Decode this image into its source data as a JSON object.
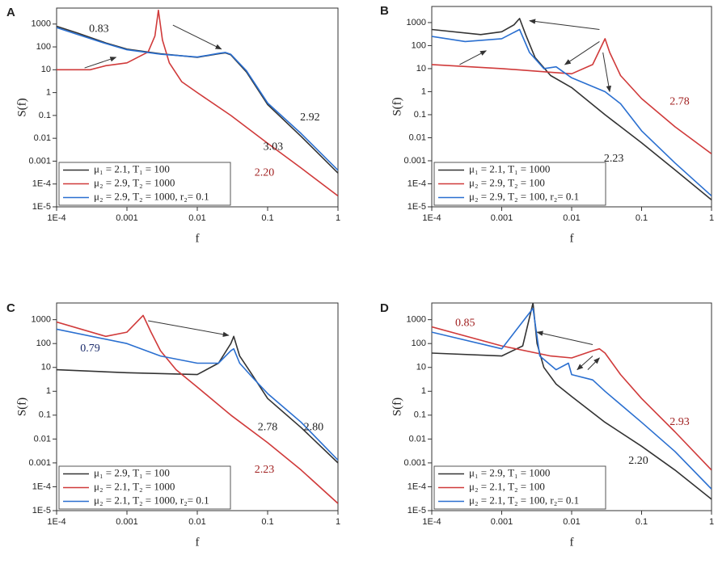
{
  "chart_data": [
    {
      "type": "line",
      "label": "A",
      "xlabel": "f",
      "ylabel": "S(f)",
      "log_x": true,
      "log_y": true,
      "legend": "lower left",
      "xlim": [
        0.0001,
        1
      ],
      "xticks": [
        {
          "value": 0.0001,
          "label": "1E-4"
        },
        0.001,
        0.01,
        0.1,
        1
      ],
      "ylim": [
        1e-05,
        5000
      ],
      "yticks": [
        {
          "value": 1e-05,
          "label": "1E-5"
        },
        {
          "value": 0.0001,
          "label": "1E-4"
        },
        0.001,
        0.01,
        0.1,
        1,
        10,
        100,
        1000
      ],
      "series": [
        {
          "name": "μ₁ = 2.1, T₁ = 100",
          "color": "#333333",
          "x": [
            0.0001,
            0.0002,
            0.0005,
            0.001,
            0.003,
            0.01,
            0.02,
            0.025,
            0.03,
            0.05,
            0.1,
            0.3,
            1
          ],
          "values": [
            800,
            400,
            150,
            80,
            50,
            35,
            50,
            55,
            45,
            8,
            0.3,
            0.012,
            0.0003
          ]
        },
        {
          "name": "μ₂ = 2.9, T₂ = 1000",
          "color": "#d03a3a",
          "x": [
            0.0001,
            0.0003,
            0.0005,
            0.001,
            0.002,
            0.0025,
            0.0028,
            0.0032,
            0.004,
            0.006,
            0.01,
            0.03,
            0.1,
            0.3,
            1
          ],
          "values": [
            10,
            10,
            15,
            20,
            60,
            300,
            4000,
            200,
            20,
            3,
            1,
            0.1,
            0.006,
            0.0005,
            3e-05
          ]
        },
        {
          "name": "μ₂ = 2.9, T₂ = 1000, r₂= 0.1",
          "color": "#2a6fd0",
          "x": [
            0.0001,
            0.0002,
            0.0005,
            0.001,
            0.003,
            0.01,
            0.02,
            0.025,
            0.03,
            0.05,
            0.1,
            0.3,
            1
          ],
          "values": [
            700,
            350,
            140,
            75,
            48,
            36,
            52,
            57,
            47,
            9,
            0.35,
            0.016,
            0.0004
          ]
        }
      ],
      "annotations": [
        {
          "text": "0.83",
          "x": 0.0004,
          "y": 600,
          "color": "#222222"
        },
        {
          "text": "2.92",
          "x": 0.4,
          "y": 0.08,
          "color": "#222222"
        },
        {
          "text": "3.03",
          "x": 0.12,
          "y": 0.004,
          "color": "#222222"
        },
        {
          "text": "2.20",
          "x": 0.09,
          "y": 0.0003,
          "color": "#a02020"
        }
      ],
      "arrows": [
        {
          "from": [
            0.00025,
            12
          ],
          "to": [
            0.0007,
            35
          ]
        },
        {
          "from": [
            0.0045,
            900
          ],
          "to": [
            0.022,
            80
          ]
        }
      ]
    },
    {
      "type": "line",
      "label": "B",
      "xlabel": "f",
      "ylabel": "S(f)",
      "log_x": true,
      "log_y": true,
      "legend": "lower left",
      "xlim": [
        0.0001,
        1
      ],
      "xticks": [
        {
          "value": 0.0001,
          "label": "1E-4"
        },
        0.001,
        0.01,
        0.1,
        1
      ],
      "ylim": [
        1e-05,
        5000
      ],
      "yticks": [
        {
          "value": 1e-05,
          "label": "1E-5"
        },
        {
          "value": 0.0001,
          "label": "1E-4"
        },
        0.001,
        0.01,
        0.1,
        1,
        10,
        100,
        1000
      ],
      "series": [
        {
          "name": "μ₁ = 2.1, T₁ = 1000",
          "color": "#333333",
          "x": [
            0.0001,
            0.0005,
            0.001,
            0.0015,
            0.0018,
            0.0022,
            0.003,
            0.005,
            0.01,
            0.03,
            0.1,
            0.3,
            1
          ],
          "values": [
            500,
            300,
            400,
            800,
            1500,
            300,
            30,
            5,
            1.5,
            0.1,
            0.006,
            0.0004,
            2e-05
          ]
        },
        {
          "name": "μ₂ = 2.9, T₂ = 100",
          "color": "#d03a3a",
          "x": [
            0.0001,
            0.001,
            0.005,
            0.01,
            0.02,
            0.03,
            0.035,
            0.05,
            0.1,
            0.3,
            1
          ],
          "values": [
            15,
            10,
            7,
            6,
            15,
            200,
            50,
            5,
            0.5,
            0.03,
            0.002
          ]
        },
        {
          "name": "μ₂ = 2.9, T₂ = 100, r₂= 0.1",
          "color": "#2a6fd0",
          "x": [
            0.0001,
            0.0003,
            0.001,
            0.0018,
            0.0025,
            0.004,
            0.006,
            0.01,
            0.03,
            0.05,
            0.1,
            0.3,
            1
          ],
          "values": [
            250,
            150,
            200,
            500,
            50,
            10,
            12,
            4,
            1,
            0.3,
            0.02,
            0.0008,
            3e-05
          ]
        }
      ],
      "annotations": [
        {
          "text": "2.78",
          "x": 0.35,
          "y": 0.35,
          "color": "#a02020"
        },
        {
          "text": "2.23",
          "x": 0.04,
          "y": 0.0012,
          "color": "#222222"
        }
      ],
      "arrows": [
        {
          "from": [
            0.00025,
            15
          ],
          "to": [
            0.0006,
            60
          ]
        },
        {
          "from": [
            0.025,
            500
          ],
          "to": [
            0.0025,
            1200
          ]
        },
        {
          "from": [
            0.025,
            150
          ],
          "to": [
            0.008,
            15
          ]
        },
        {
          "from": [
            0.028,
            50
          ],
          "to": [
            0.035,
            1
          ]
        }
      ]
    },
    {
      "type": "line",
      "label": "C",
      "xlabel": "f",
      "ylabel": "S(f)",
      "log_x": true,
      "log_y": true,
      "legend": "lower left",
      "xlim": [
        0.0001,
        1
      ],
      "xticks": [
        {
          "value": 0.0001,
          "label": "1E-4"
        },
        0.001,
        0.01,
        0.1,
        1
      ],
      "ylim": [
        1e-05,
        5000
      ],
      "yticks": [
        {
          "value": 1e-05,
          "label": "1E-5"
        },
        {
          "value": 0.0001,
          "label": "1E-4"
        },
        0.001,
        0.01,
        0.1,
        1,
        10,
        100,
        1000
      ],
      "series": [
        {
          "name": "μ₁ = 2.9, T₁ = 100",
          "color": "#333333",
          "x": [
            0.0001,
            0.001,
            0.01,
            0.02,
            0.03,
            0.033,
            0.04,
            0.06,
            0.1,
            0.3,
            1
          ],
          "values": [
            8,
            6,
            5,
            15,
            100,
            200,
            30,
            5,
            0.5,
            0.03,
            0.001
          ]
        },
        {
          "name": "μ₂ = 2.1, T₂ = 1000",
          "color": "#d03a3a",
          "x": [
            0.0001,
            0.0005,
            0.001,
            0.0017,
            0.0022,
            0.003,
            0.005,
            0.01,
            0.03,
            0.1,
            0.3,
            1
          ],
          "values": [
            800,
            200,
            300,
            1500,
            300,
            50,
            8,
            1.5,
            0.1,
            0.007,
            0.0005,
            2e-05
          ]
        },
        {
          "name": "μ₂ = 2.1, T₂ = 1000, r₂= 0.1",
          "color": "#2a6fd0",
          "x": [
            0.0001,
            0.001,
            0.003,
            0.01,
            0.02,
            0.03,
            0.033,
            0.04,
            0.06,
            0.1,
            0.3,
            1
          ],
          "values": [
            400,
            100,
            30,
            15,
            15,
            50,
            60,
            15,
            4,
            0.8,
            0.05,
            0.0013
          ]
        }
      ],
      "annotations": [
        {
          "text": "0.79",
          "x": 0.0003,
          "y": 60,
          "color": "#1a2a6a"
        },
        {
          "text": "2.78",
          "x": 0.1,
          "y": 0.03,
          "color": "#222222"
        },
        {
          "text": "2.80",
          "x": 0.45,
          "y": 0.03,
          "color": "#222222"
        },
        {
          "text": "2.23",
          "x": 0.09,
          "y": 0.0005,
          "color": "#a02020"
        }
      ],
      "arrows": [
        {
          "from": [
            0.002,
            900
          ],
          "to": [
            0.028,
            220
          ]
        }
      ]
    },
    {
      "type": "line",
      "label": "D",
      "xlabel": "f",
      "ylabel": "S(f)",
      "log_x": true,
      "log_y": true,
      "legend": "lower left",
      "xlim": [
        0.0001,
        1
      ],
      "xticks": [
        {
          "value": 0.0001,
          "label": "1E-4"
        },
        0.001,
        0.01,
        0.1,
        1
      ],
      "ylim": [
        1e-05,
        5000
      ],
      "yticks": [
        {
          "value": 1e-05,
          "label": "1E-5"
        },
        {
          "value": 0.0001,
          "label": "1E-4"
        },
        0.001,
        0.01,
        0.1,
        1,
        10,
        100,
        1000
      ],
      "series": [
        {
          "name": "μ₁ = 2.9, T₁ = 1000",
          "color": "#333333",
          "x": [
            0.0001,
            0.001,
            0.002,
            0.0028,
            0.0032,
            0.004,
            0.006,
            0.01,
            0.03,
            0.1,
            0.3,
            1
          ],
          "values": [
            40,
            30,
            80,
            5000,
            100,
            10,
            2,
            0.6,
            0.05,
            0.005,
            0.0005,
            3e-05
          ]
        },
        {
          "name": "μ₂ = 2.1, T₂ = 100",
          "color": "#d03a3a",
          "x": [
            0.0001,
            0.001,
            0.005,
            0.01,
            0.02,
            0.025,
            0.03,
            0.05,
            0.1,
            0.3,
            1
          ],
          "values": [
            500,
            80,
            30,
            25,
            50,
            60,
            40,
            5,
            0.5,
            0.02,
            0.0005
          ]
        },
        {
          "name": "μ₂ = 2.1, T₂ = 100, r₂= 0.1",
          "color": "#2a6fd0",
          "x": [
            0.0001,
            0.001,
            0.0028,
            0.0035,
            0.006,
            0.009,
            0.01,
            0.02,
            0.03,
            0.1,
            0.3,
            1
          ],
          "values": [
            300,
            60,
            3000,
            30,
            8,
            15,
            5,
            3,
            1,
            0.05,
            0.003,
            8e-05
          ]
        }
      ],
      "annotations": [
        {
          "text": "0.85",
          "x": 0.0003,
          "y": 700,
          "color": "#a02020"
        },
        {
          "text": "2.93",
          "x": 0.35,
          "y": 0.05,
          "color": "#a02020"
        },
        {
          "text": "2.20",
          "x": 0.09,
          "y": 0.0012,
          "color": "#222222"
        }
      ],
      "arrows": [
        {
          "from": [
            0.02,
            90
          ],
          "to": [
            0.0032,
            300
          ]
        },
        {
          "from": [
            0.02,
            30
          ],
          "to": [
            0.012,
            8
          ]
        },
        {
          "from": [
            0.017,
            8
          ],
          "to": [
            0.025,
            25
          ]
        }
      ]
    }
  ]
}
